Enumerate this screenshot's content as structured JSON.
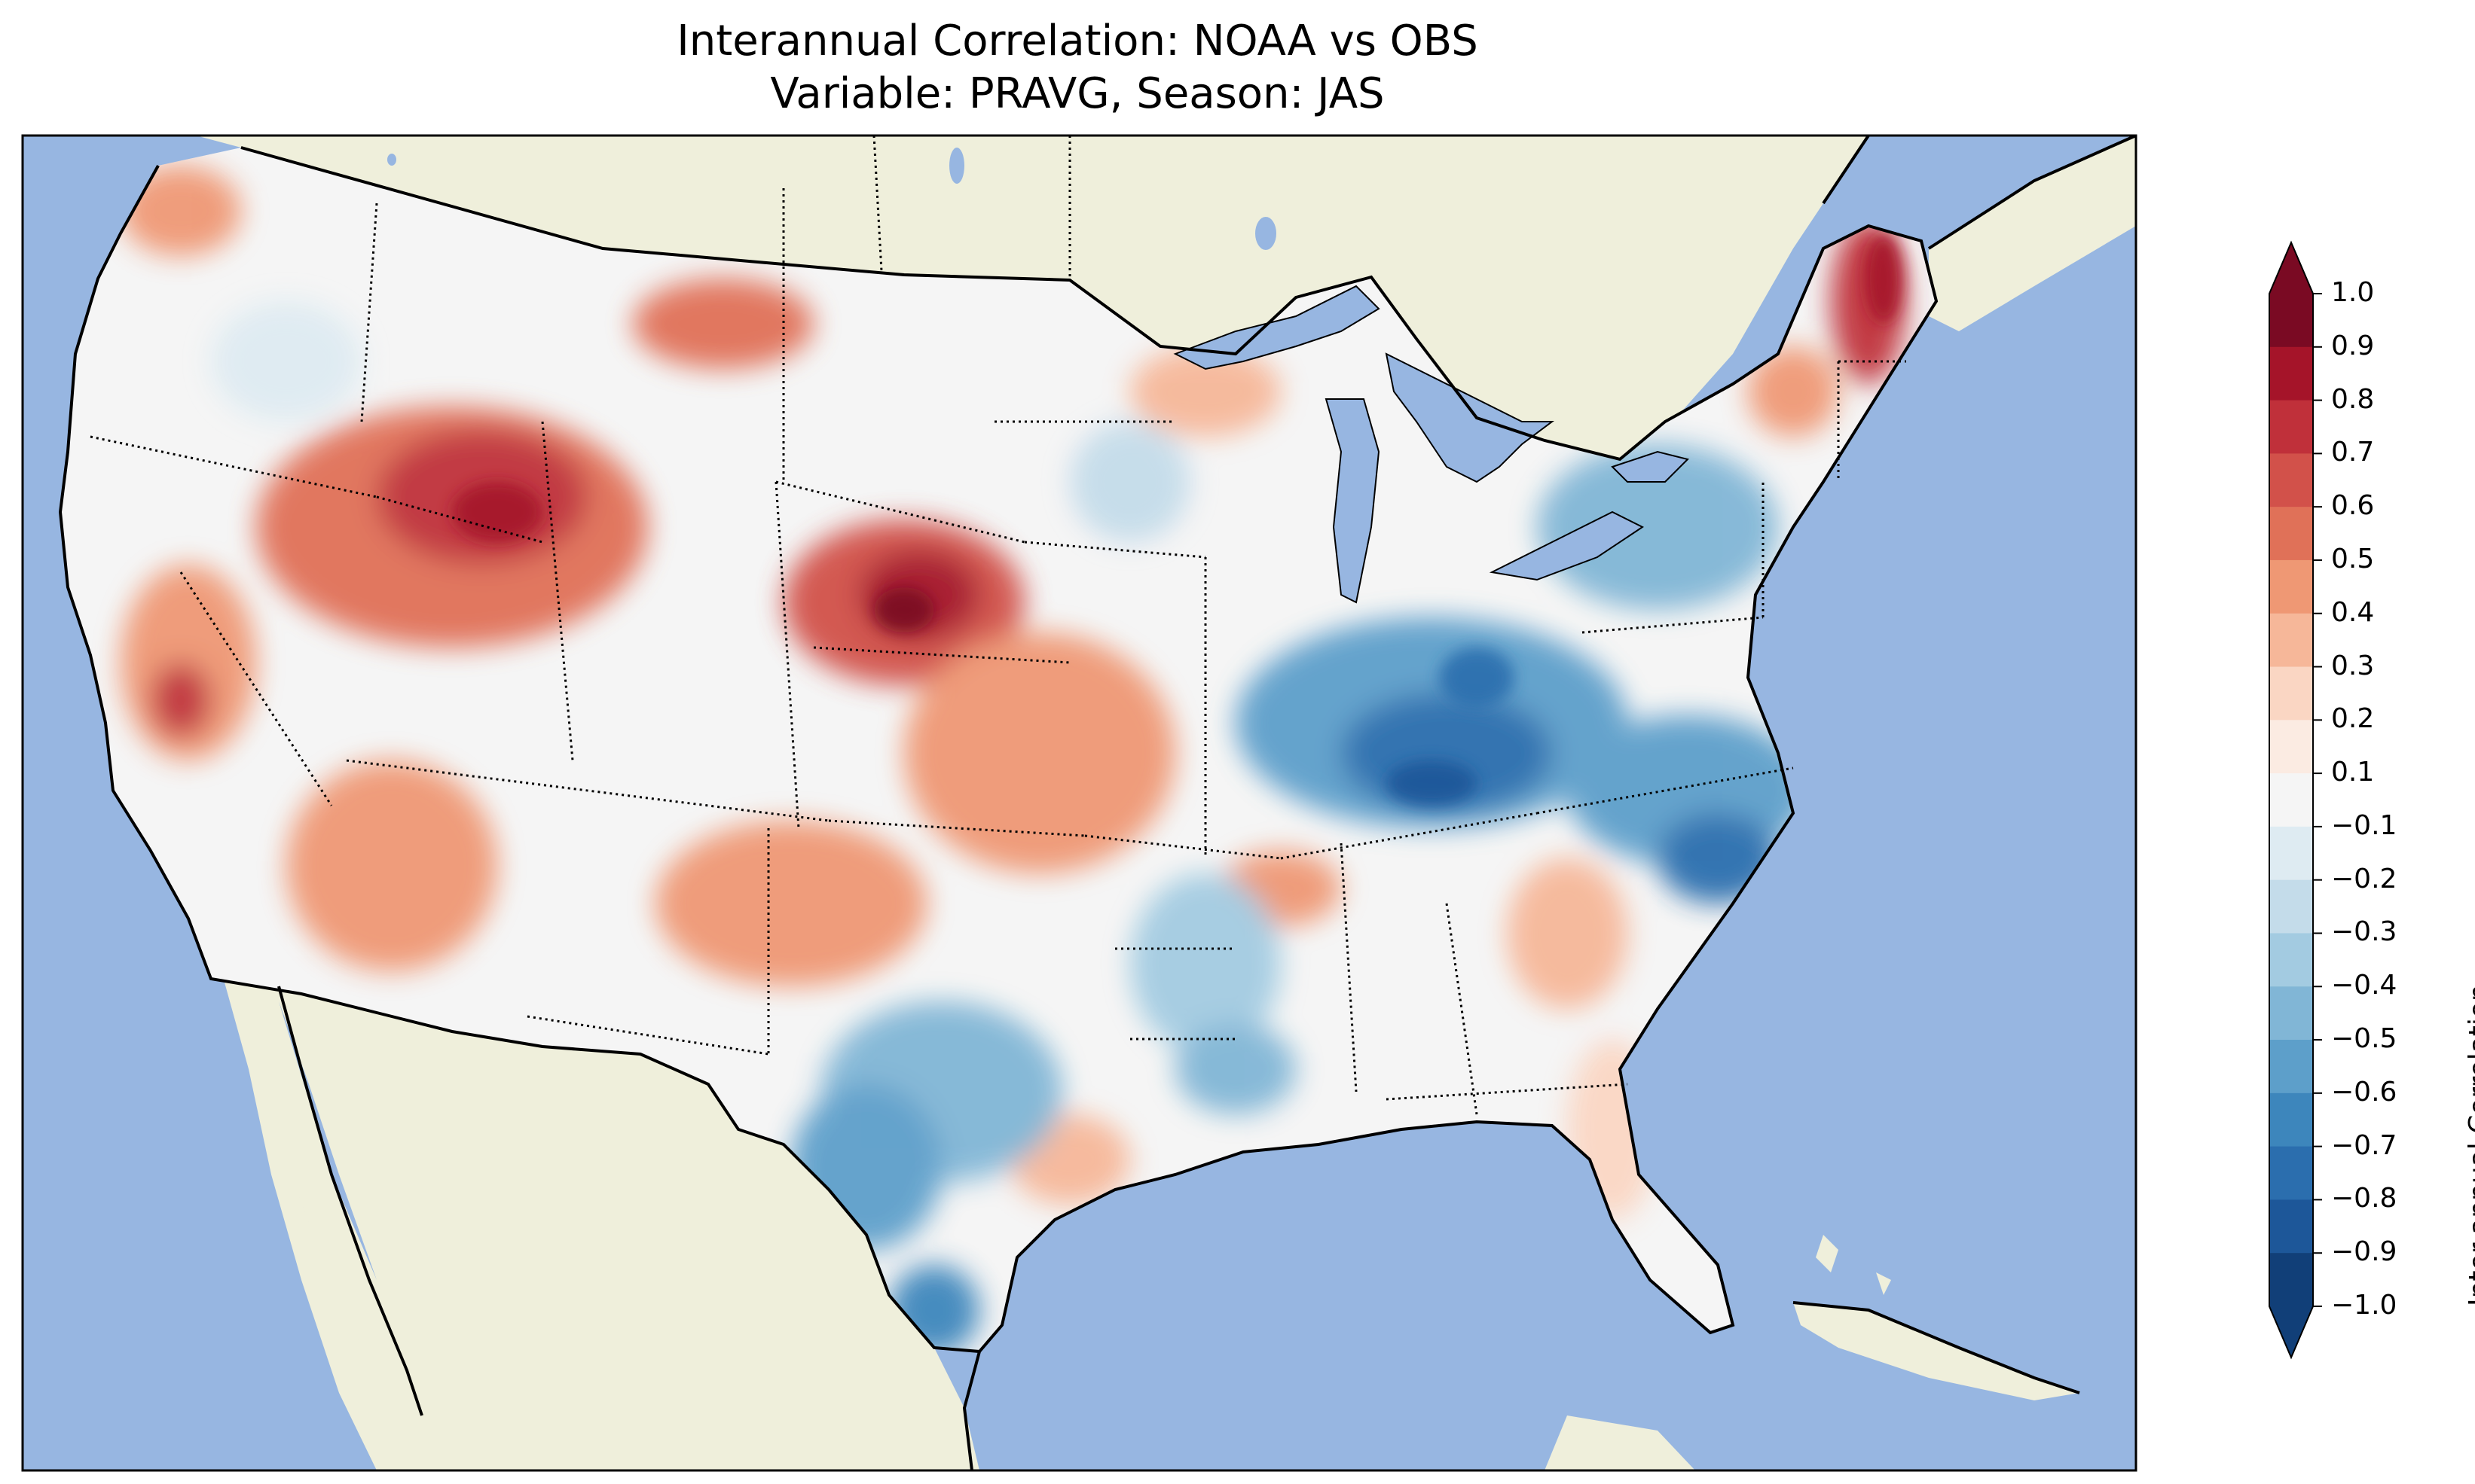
{
  "title_line1": "Interannual Correlation: NOAA vs OBS",
  "title_line2": "Variable: PRAVG, Season: JAS",
  "colorbar": {
    "label": "Inter-annual Correlation",
    "ticks": [
      "1.0",
      "0.9",
      "0.8",
      "0.7",
      "0.6",
      "0.5",
      "0.4",
      "0.3",
      "0.2",
      "0.1",
      "−0.1",
      "−0.2",
      "−0.3",
      "−0.4",
      "−0.5",
      "−0.6",
      "−0.7",
      "−0.8",
      "−0.9",
      "−1.0"
    ],
    "colors": [
      "#7a0a23",
      "#a51429",
      "#c0303a",
      "#d2514a",
      "#e07158",
      "#ef9874",
      "#f6b799",
      "#fad6c3",
      "#fbebe2",
      "#f5f5f5",
      "#deebf2",
      "#c4dcea",
      "#a3cbe1",
      "#81b6d6",
      "#5d9fca",
      "#3d86bc",
      "#2b6eae",
      "#1d5799",
      "#113f78"
    ],
    "extend": "both",
    "range": [
      -1.0,
      1.0
    ]
  },
  "map": {
    "ocean_color": "#97b6e1",
    "land_color": "#efefdb",
    "lake_color": "#97b6e1",
    "region": "contiguous United States",
    "features": [
      "coastlines",
      "country borders",
      "state boundaries (dotted)",
      "great lakes"
    ]
  }
}
